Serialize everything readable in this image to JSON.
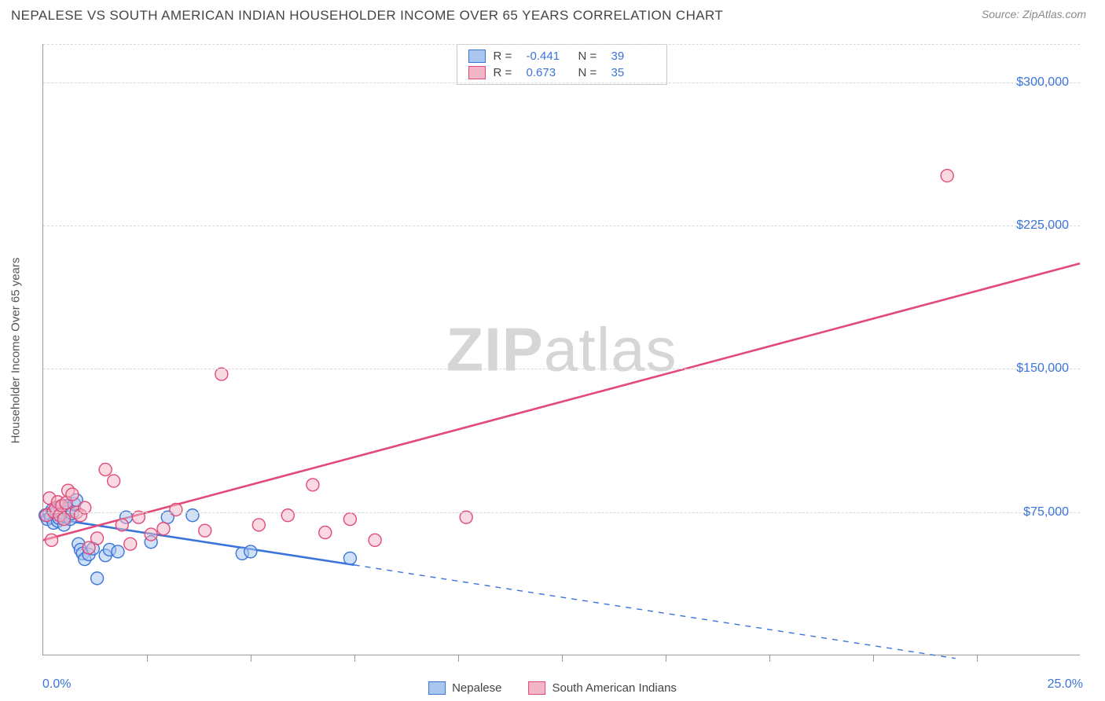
{
  "title": "NEPALESE VS SOUTH AMERICAN INDIAN HOUSEHOLDER INCOME OVER 65 YEARS CORRELATION CHART",
  "source": "Source: ZipAtlas.com",
  "watermark_a": "ZIP",
  "watermark_b": "atlas",
  "y_axis_label": "Householder Income Over 65 years",
  "chart": {
    "type": "scatter-correlation",
    "background_color": "#ffffff",
    "grid_color": "#d8d8d8",
    "axis_color": "#9a9a9a",
    "tick_label_color": "#3b74d8",
    "font_family": "Arial",
    "x": {
      "min": 0.0,
      "max": 25.0,
      "label_start": "0.0%",
      "label_end": "25.0%",
      "ticks": [
        2.5,
        5.0,
        7.5,
        10.0,
        12.5,
        15.0,
        17.5,
        20.0,
        22.5
      ]
    },
    "y": {
      "min": 0,
      "max": 320000,
      "ticks": [
        75000,
        150000,
        225000,
        300000
      ],
      "tick_labels": [
        "$75,000",
        "$150,000",
        "$225,000",
        "$300,000"
      ]
    },
    "series": [
      {
        "name": "Nepalese",
        "legend_key": "nepalese",
        "fill": "#a9c7ee",
        "stroke": "#3b74d8",
        "fill_opacity": 0.55,
        "marker_radius": 8,
        "r_label": "R =",
        "r_value": "-0.441",
        "n_label": "N =",
        "n_value": "39",
        "regression": {
          "x1": 0.0,
          "y1": 72000,
          "x2": 7.5,
          "y2": 47000,
          "width": 2.6,
          "dash_x2": 22.0,
          "dash_y2": -2000
        },
        "points": [
          [
            0.05,
            73000
          ],
          [
            0.1,
            71000
          ],
          [
            0.15,
            74000
          ],
          [
            0.18,
            72000
          ],
          [
            0.22,
            76000
          ],
          [
            0.25,
            69000
          ],
          [
            0.28,
            75500
          ],
          [
            0.3,
            73500
          ],
          [
            0.32,
            75000
          ],
          [
            0.35,
            70000
          ],
          [
            0.38,
            71500
          ],
          [
            0.4,
            77500
          ],
          [
            0.45,
            74500
          ],
          [
            0.5,
            68000
          ],
          [
            0.52,
            72500
          ],
          [
            0.55,
            78000
          ],
          [
            0.58,
            76500
          ],
          [
            0.6,
            75000
          ],
          [
            0.65,
            71000
          ],
          [
            0.7,
            74000
          ],
          [
            0.75,
            79000
          ],
          [
            0.8,
            81000
          ],
          [
            0.85,
            58000
          ],
          [
            0.9,
            55000
          ],
          [
            0.95,
            53000
          ],
          [
            1.0,
            50000
          ],
          [
            1.1,
            52500
          ],
          [
            1.2,
            55500
          ],
          [
            1.3,
            40000
          ],
          [
            1.5,
            52000
          ],
          [
            1.6,
            55000
          ],
          [
            1.8,
            54000
          ],
          [
            2.0,
            72000
          ],
          [
            2.6,
            59000
          ],
          [
            3.0,
            72000
          ],
          [
            3.6,
            73000
          ],
          [
            4.8,
            53000
          ],
          [
            5.0,
            54000
          ],
          [
            7.4,
            50500
          ]
        ]
      },
      {
        "name": "South American Indians",
        "legend_key": "sai",
        "fill": "#f3b6c6",
        "stroke": "#e24a78",
        "fill_opacity": 0.5,
        "marker_radius": 8,
        "r_label": "R =",
        "r_value": "0.673",
        "n_label": "N =",
        "n_value": "35",
        "regression": {
          "x1": 0.0,
          "y1": 60000,
          "x2": 25.0,
          "y2": 205000,
          "width": 2.6
        },
        "points": [
          [
            0.08,
            73000
          ],
          [
            0.15,
            82000
          ],
          [
            0.2,
            60000
          ],
          [
            0.25,
            75000
          ],
          [
            0.3,
            77000
          ],
          [
            0.35,
            80000
          ],
          [
            0.4,
            73000
          ],
          [
            0.45,
            78000
          ],
          [
            0.5,
            71000
          ],
          [
            0.55,
            79500
          ],
          [
            0.6,
            86000
          ],
          [
            0.7,
            84000
          ],
          [
            0.8,
            74500
          ],
          [
            0.9,
            73000
          ],
          [
            1.0,
            77000
          ],
          [
            1.1,
            56000
          ],
          [
            1.3,
            61000
          ],
          [
            1.5,
            97000
          ],
          [
            1.7,
            91000
          ],
          [
            1.9,
            68000
          ],
          [
            2.1,
            58000
          ],
          [
            2.3,
            72000
          ],
          [
            2.6,
            63000
          ],
          [
            2.9,
            66000
          ],
          [
            3.2,
            76000
          ],
          [
            3.9,
            65000
          ],
          [
            4.3,
            147000
          ],
          [
            5.2,
            68000
          ],
          [
            5.9,
            73000
          ],
          [
            6.5,
            89000
          ],
          [
            6.8,
            64000
          ],
          [
            7.4,
            71000
          ],
          [
            8.0,
            60000
          ],
          [
            10.2,
            72000
          ],
          [
            21.8,
            251000
          ]
        ]
      }
    ]
  },
  "legend_bottom": [
    {
      "key": "nepalese",
      "label": "Nepalese"
    },
    {
      "key": "sai",
      "label": "South American Indians"
    }
  ]
}
